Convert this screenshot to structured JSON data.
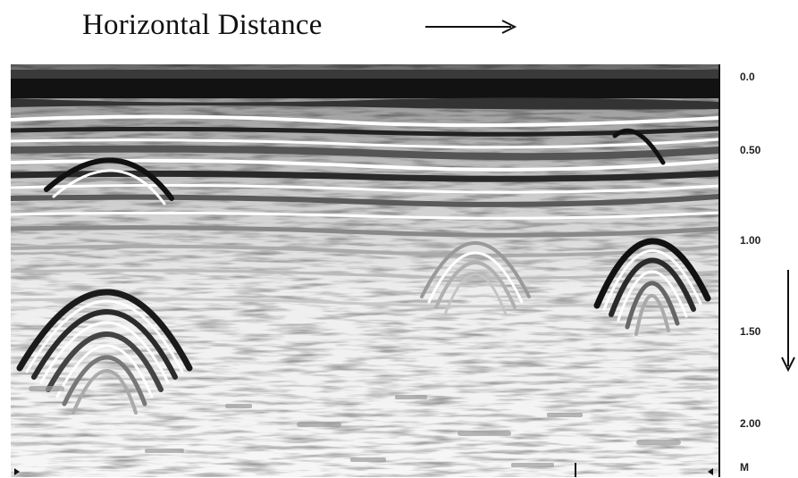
{
  "header": {
    "title": "Horizontal Distance",
    "direction_icon": "arrow-right-icon"
  },
  "depth_scale": {
    "labels": [
      "0.0",
      "0.50",
      "1.00",
      "1.50",
      "2.00"
    ],
    "unit": "M",
    "direction_icon": "arrow-down-icon"
  },
  "radargram": {
    "colors": {
      "dark": "#111111",
      "mid": "#888888",
      "light": "#f4f4f4"
    }
  }
}
